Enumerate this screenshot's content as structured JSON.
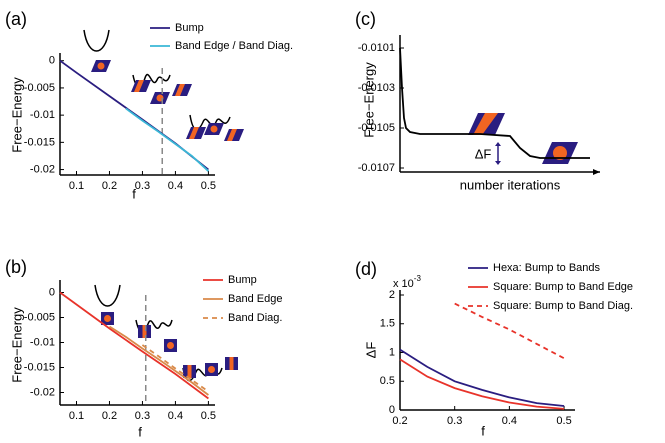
{
  "chart_data": [
    {
      "type": "line",
      "label": "(a)",
      "x_label": "f",
      "y_label": "Free−Energy",
      "xlim": [
        0.05,
        0.52
      ],
      "ylim": [
        -0.021,
        0.0005
      ],
      "xticks": [
        0.1,
        0.2,
        0.3,
        0.4,
        0.5
      ],
      "yticks": [
        0,
        -0.005,
        -0.01,
        -0.015,
        -0.02
      ],
      "vline": 0.36,
      "series": [
        {
          "name": "Bump",
          "color": "#2a1d80",
          "style": "solid",
          "x": [
            0.05,
            0.1,
            0.2,
            0.3,
            0.4,
            0.5
          ],
          "values": [
            0,
            -0.0022,
            -0.0065,
            -0.0108,
            -0.0152,
            -0.02
          ]
        },
        {
          "name": "Band Edge / Band Diag.",
          "color": "#3ab7d6",
          "style": "solid",
          "x": [
            0.25,
            0.3,
            0.35,
            0.4,
            0.45,
            0.5
          ],
          "values": [
            -0.0088,
            -0.011,
            -0.0131,
            -0.0153,
            -0.0175,
            -0.0203
          ]
        }
      ]
    },
    {
      "type": "line",
      "label": "(b)",
      "x_label": "f",
      "y_label": "Free−Energy",
      "xlim": [
        0.05,
        0.52
      ],
      "ylim": [
        -0.0225,
        0.0015
      ],
      "xticks": [
        0.1,
        0.2,
        0.3,
        0.4,
        0.5
      ],
      "yticks": [
        0,
        -0.005,
        -0.01,
        -0.015,
        -0.02
      ],
      "vline": 0.31,
      "series": [
        {
          "name": "Bump",
          "color": "#e8332a",
          "style": "solid",
          "x": [
            0.05,
            0.1,
            0.2,
            0.3,
            0.4,
            0.5
          ],
          "values": [
            0,
            -0.0024,
            -0.0072,
            -0.0118,
            -0.0163,
            -0.0212
          ]
        },
        {
          "name": "Band Edge",
          "color": "#d98a4a",
          "style": "solid",
          "x": [
            0.2,
            0.25,
            0.3,
            0.35,
            0.4,
            0.45,
            0.5
          ],
          "values": [
            -0.0068,
            -0.0089,
            -0.0112,
            -0.0134,
            -0.0157,
            -0.018,
            -0.0205
          ]
        },
        {
          "name": "Band Diag.",
          "color": "#d98a4a",
          "style": "dashed",
          "x": [
            0.3,
            0.35,
            0.4,
            0.45,
            0.5
          ],
          "values": [
            -0.0105,
            -0.0128,
            -0.0152,
            -0.0175,
            -0.0198
          ]
        }
      ]
    },
    {
      "type": "line",
      "label": "(c)",
      "x_label": "number iterations",
      "y_label": "Free−Energy",
      "annotation": "ΔF",
      "xlim": [
        0,
        100
      ],
      "ylim": [
        -0.01072,
        -0.01006
      ],
      "yticks": [
        -0.0101,
        -0.0103,
        -0.0105,
        -0.0107
      ],
      "series": [
        {
          "color": "#000000",
          "style": "solid",
          "x": [
            0,
            1,
            2,
            3,
            5,
            10,
            20,
            40,
            55,
            60,
            65,
            70,
            95
          ],
          "values": [
            -0.0101,
            -0.0103,
            -0.01045,
            -0.0105,
            -0.01052,
            -0.01053,
            -0.01053,
            -0.01053,
            -0.01054,
            -0.0106,
            -0.01064,
            -0.01065,
            -0.01065
          ]
        }
      ]
    },
    {
      "type": "line",
      "label": "(d)",
      "x_label": "f",
      "y_label": "ΔF",
      "y_multiplier": {
        "base": "x 10",
        "exponent": "-3"
      },
      "xlim": [
        0.2,
        0.52
      ],
      "ylim": [
        0,
        2
      ],
      "xticks": [
        0.2,
        0.3,
        0.4,
        0.5
      ],
      "yticks": [
        0,
        0.5,
        1,
        1.5,
        2
      ],
      "series": [
        {
          "name": "Hexa: Bump to Bands",
          "color": "#2a1d80",
          "style": "solid",
          "x": [
            0.2,
            0.25,
            0.3,
            0.35,
            0.4,
            0.45,
            0.5
          ],
          "values": [
            1.05,
            0.75,
            0.5,
            0.35,
            0.22,
            0.12,
            0.07
          ]
        },
        {
          "name": "Square: Bump to Band Edge",
          "color": "#e8332a",
          "style": "solid",
          "x": [
            0.2,
            0.25,
            0.3,
            0.35,
            0.4,
            0.45,
            0.5
          ],
          "values": [
            0.88,
            0.58,
            0.38,
            0.24,
            0.13,
            0.06,
            0.02
          ]
        },
        {
          "name": "Square: Bump to Band Diag.",
          "color": "#e8332a",
          "style": "dashed",
          "x": [
            0.3,
            0.35,
            0.4,
            0.45,
            0.5
          ],
          "values": [
            1.85,
            1.62,
            1.4,
            1.15,
            0.9
          ]
        }
      ]
    }
  ]
}
